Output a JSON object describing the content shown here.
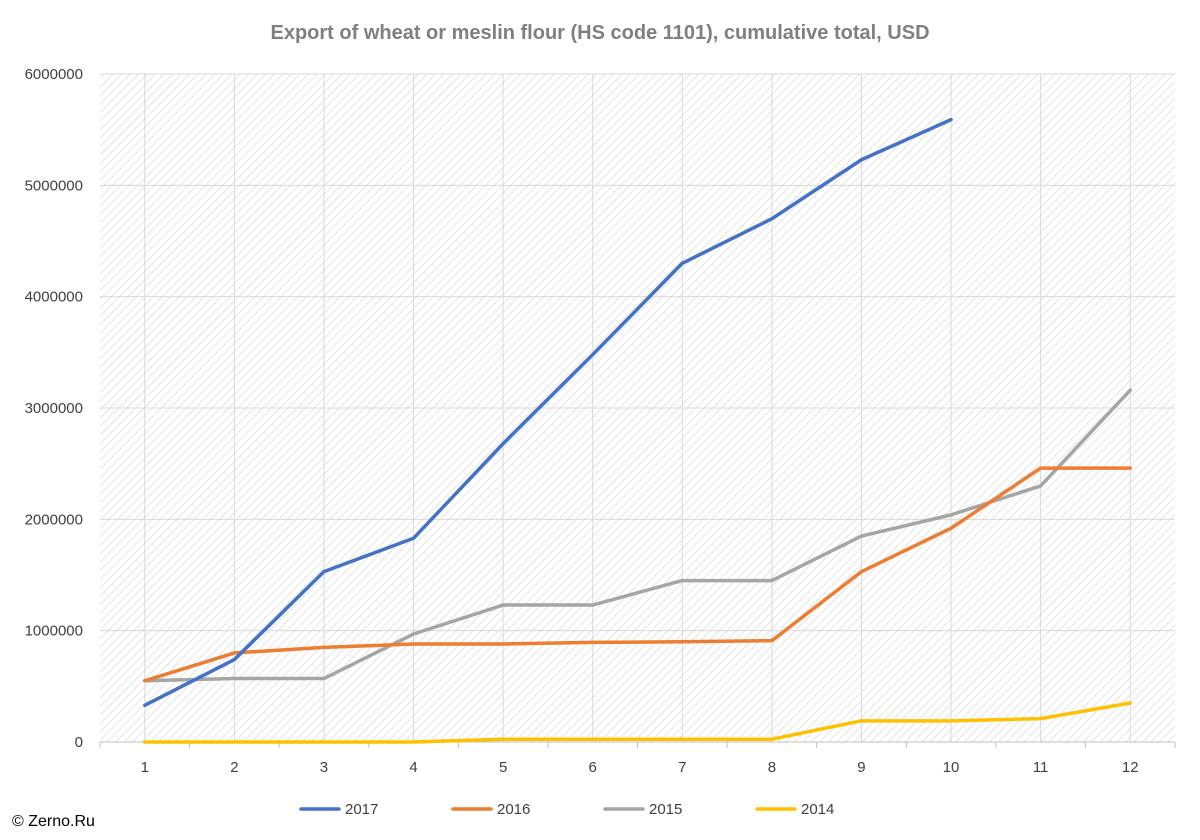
{
  "chart_data": {
    "type": "line",
    "title": "Export of wheat or meslin flour (HS code 1101), cumulative total, USD",
    "xlabel": "",
    "ylabel": "",
    "categories": [
      "1",
      "2",
      "3",
      "4",
      "5",
      "6",
      "7",
      "8",
      "9",
      "10",
      "11",
      "12"
    ],
    "ylim": [
      0,
      6000000
    ],
    "yticks": [
      "0",
      "1000000",
      "2000000",
      "3000000",
      "4000000",
      "5000000",
      "6000000"
    ],
    "grid": true,
    "legend_position": "bottom",
    "series": [
      {
        "name": "2017",
        "color": "#4472c4",
        "values": [
          330000,
          740000,
          1530000,
          1830000,
          2680000,
          3480000,
          4300000,
          4700000,
          5230000,
          5590000,
          null,
          null
        ]
      },
      {
        "name": "2016",
        "color": "#ed7d31",
        "values": [
          550000,
          800000,
          850000,
          880000,
          880000,
          895000,
          900000,
          910000,
          1530000,
          1920000,
          2460000,
          2460000
        ]
      },
      {
        "name": "2015",
        "color": "#a5a5a5",
        "values": [
          550000,
          570000,
          570000,
          970000,
          1230000,
          1230000,
          1450000,
          1450000,
          1850000,
          2040000,
          2300000,
          3160000
        ]
      },
      {
        "name": "2014",
        "color": "#ffc000",
        "values": [
          0,
          0,
          0,
          0,
          25000,
          25000,
          25000,
          25000,
          190000,
          190000,
          210000,
          350000
        ]
      }
    ]
  },
  "copyright": "© Zerno.Ru"
}
